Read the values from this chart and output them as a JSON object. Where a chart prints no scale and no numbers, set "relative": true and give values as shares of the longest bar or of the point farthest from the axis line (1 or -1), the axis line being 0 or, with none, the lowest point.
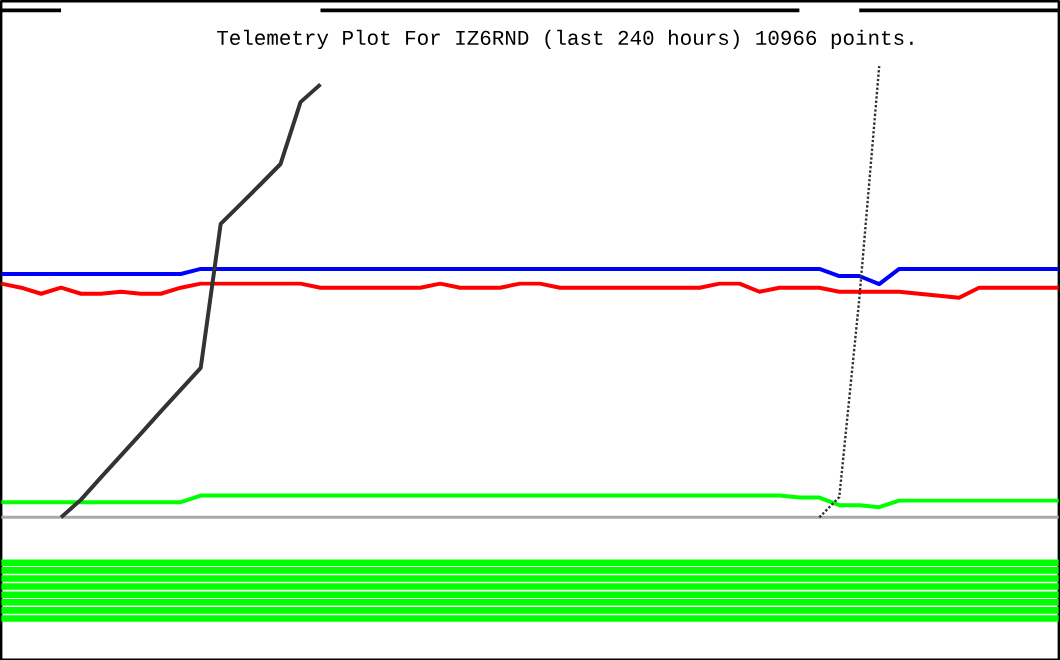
{
  "chart_data": {
    "type": "line",
    "title": "Telemetry Plot For IZ6RND (last 240 hours) 10966 points.",
    "relative": true,
    "tick_labels": false,
    "categories": [
      null,
      null,
      null,
      null,
      null,
      null,
      null,
      null,
      null,
      null,
      null,
      null,
      null,
      null,
      null,
      null,
      null,
      null,
      null,
      null,
      null,
      null,
      null,
      null,
      null,
      null,
      null,
      null,
      null,
      null,
      null,
      null,
      null,
      null,
      null,
      null,
      null,
      null,
      null,
      null,
      null,
      null,
      null,
      null,
      null,
      null,
      null,
      null,
      null,
      null,
      null,
      null,
      null,
      null
    ],
    "series": [
      {
        "color": "#0000ff",
        "values": [
          0.48,
          0.48,
          0.48,
          0.48,
          0.48,
          0.48,
          0.48,
          0.48,
          0.48,
          0.48,
          0.49,
          0.49,
          0.49,
          0.49,
          0.49,
          0.49,
          0.49,
          0.49,
          0.49,
          0.49,
          0.49,
          0.49,
          0.49,
          0.49,
          0.49,
          0.49,
          0.49,
          0.49,
          0.49,
          0.49,
          0.49,
          0.49,
          0.49,
          0.49,
          0.49,
          0.49,
          0.49,
          0.49,
          0.49,
          0.49,
          0.49,
          0.49,
          0.476,
          0.476,
          0.46,
          0.49,
          0.49,
          0.49,
          0.49,
          0.49,
          0.49,
          0.49,
          0.49,
          0.49
        ]
      },
      {
        "color": "#ff0000",
        "values": [
          0.461,
          0.453,
          0.441,
          0.453,
          0.441,
          0.441,
          0.445,
          0.441,
          0.441,
          0.453,
          0.461,
          0.461,
          0.461,
          0.461,
          0.461,
          0.461,
          0.453,
          0.453,
          0.453,
          0.453,
          0.453,
          0.453,
          0.461,
          0.453,
          0.453,
          0.453,
          0.461,
          0.461,
          0.453,
          0.453,
          0.453,
          0.453,
          0.453,
          0.453,
          0.453,
          0.453,
          0.461,
          0.461,
          0.445,
          0.453,
          0.453,
          0.453,
          0.445,
          0.445,
          0.445,
          0.445,
          0.441,
          0.437,
          0.433,
          0.453,
          0.453,
          0.453,
          0.453,
          0.453
        ]
      },
      {
        "color": "#00ff00",
        "values": [
          0.03,
          0.03,
          0.03,
          0.03,
          0.03,
          0.03,
          0.03,
          0.03,
          0.03,
          0.03,
          0.043,
          0.043,
          0.043,
          0.043,
          0.043,
          0.043,
          0.043,
          0.043,
          0.043,
          0.043,
          0.043,
          0.043,
          0.043,
          0.043,
          0.043,
          0.043,
          0.043,
          0.043,
          0.043,
          0.043,
          0.043,
          0.043,
          0.043,
          0.043,
          0.043,
          0.043,
          0.043,
          0.043,
          0.043,
          0.043,
          0.039,
          0.039,
          0.024,
          0.024,
          0.02,
          0.033,
          0.033,
          0.033,
          0.033,
          0.033,
          0.033,
          0.033,
          0.033,
          0.033
        ]
      },
      {
        "color": "#333333",
        "values": [
          null,
          null,
          null,
          0.0,
          0.035,
          0.079,
          0.122,
          0.165,
          0.209,
          0.252,
          0.295,
          0.579,
          0.618,
          0.657,
          0.697,
          0.819,
          0.854,
          null,
          null,
          null,
          null,
          null,
          null,
          null,
          null,
          null,
          null,
          null,
          null,
          null,
          null,
          null,
          null,
          null,
          null,
          null,
          null,
          null,
          null,
          null,
          null,
          null,
          null,
          null,
          null,
          null,
          null,
          null,
          null,
          null,
          null,
          null,
          null,
          null
        ]
      },
      {
        "color": "#333333",
        "line_style": "dotted",
        "values": [
          null,
          null,
          null,
          null,
          null,
          null,
          null,
          null,
          null,
          null,
          null,
          null,
          null,
          null,
          null,
          null,
          null,
          null,
          null,
          null,
          null,
          null,
          null,
          null,
          null,
          null,
          null,
          null,
          null,
          null,
          null,
          null,
          null,
          null,
          null,
          null,
          null,
          null,
          null,
          null,
          null,
          0.0,
          0.04,
          0.43,
          0.89,
          null,
          null,
          null,
          null,
          null,
          null,
          null,
          null,
          null
        ]
      },
      {
        "color": "#000000",
        "values": [
          1,
          1,
          1,
          1,
          null,
          null,
          null,
          null,
          null,
          null,
          null,
          null,
          null,
          null,
          null,
          null,
          1,
          1,
          1,
          1,
          1,
          1,
          1,
          1,
          1,
          1,
          1,
          1,
          1,
          1,
          1,
          1,
          1,
          1,
          1,
          1,
          1,
          1,
          1,
          1,
          1,
          null,
          null,
          1,
          1,
          1,
          1,
          1,
          1,
          1,
          1,
          1,
          1,
          1
        ]
      }
    ],
    "bands": [
      {
        "axis": "y",
        "from": -0.096,
        "to": -0.083,
        "color": "#00ff00"
      },
      {
        "axis": "y",
        "from": -0.111,
        "to": -0.098,
        "color": "#00ff00"
      },
      {
        "axis": "y",
        "from": -0.127,
        "to": -0.114,
        "color": "#00ff00"
      },
      {
        "axis": "y",
        "from": -0.143,
        "to": -0.13,
        "color": "#00ff00"
      },
      {
        "axis": "y",
        "from": -0.159,
        "to": -0.146,
        "color": "#00ff00"
      },
      {
        "axis": "y",
        "from": -0.174,
        "to": -0.161,
        "color": "#00ff00"
      },
      {
        "axis": "y",
        "from": -0.19,
        "to": -0.177,
        "color": "#00ff00"
      },
      {
        "axis": "y",
        "from": -0.206,
        "to": -0.193,
        "color": "#00ff00"
      }
    ]
  }
}
